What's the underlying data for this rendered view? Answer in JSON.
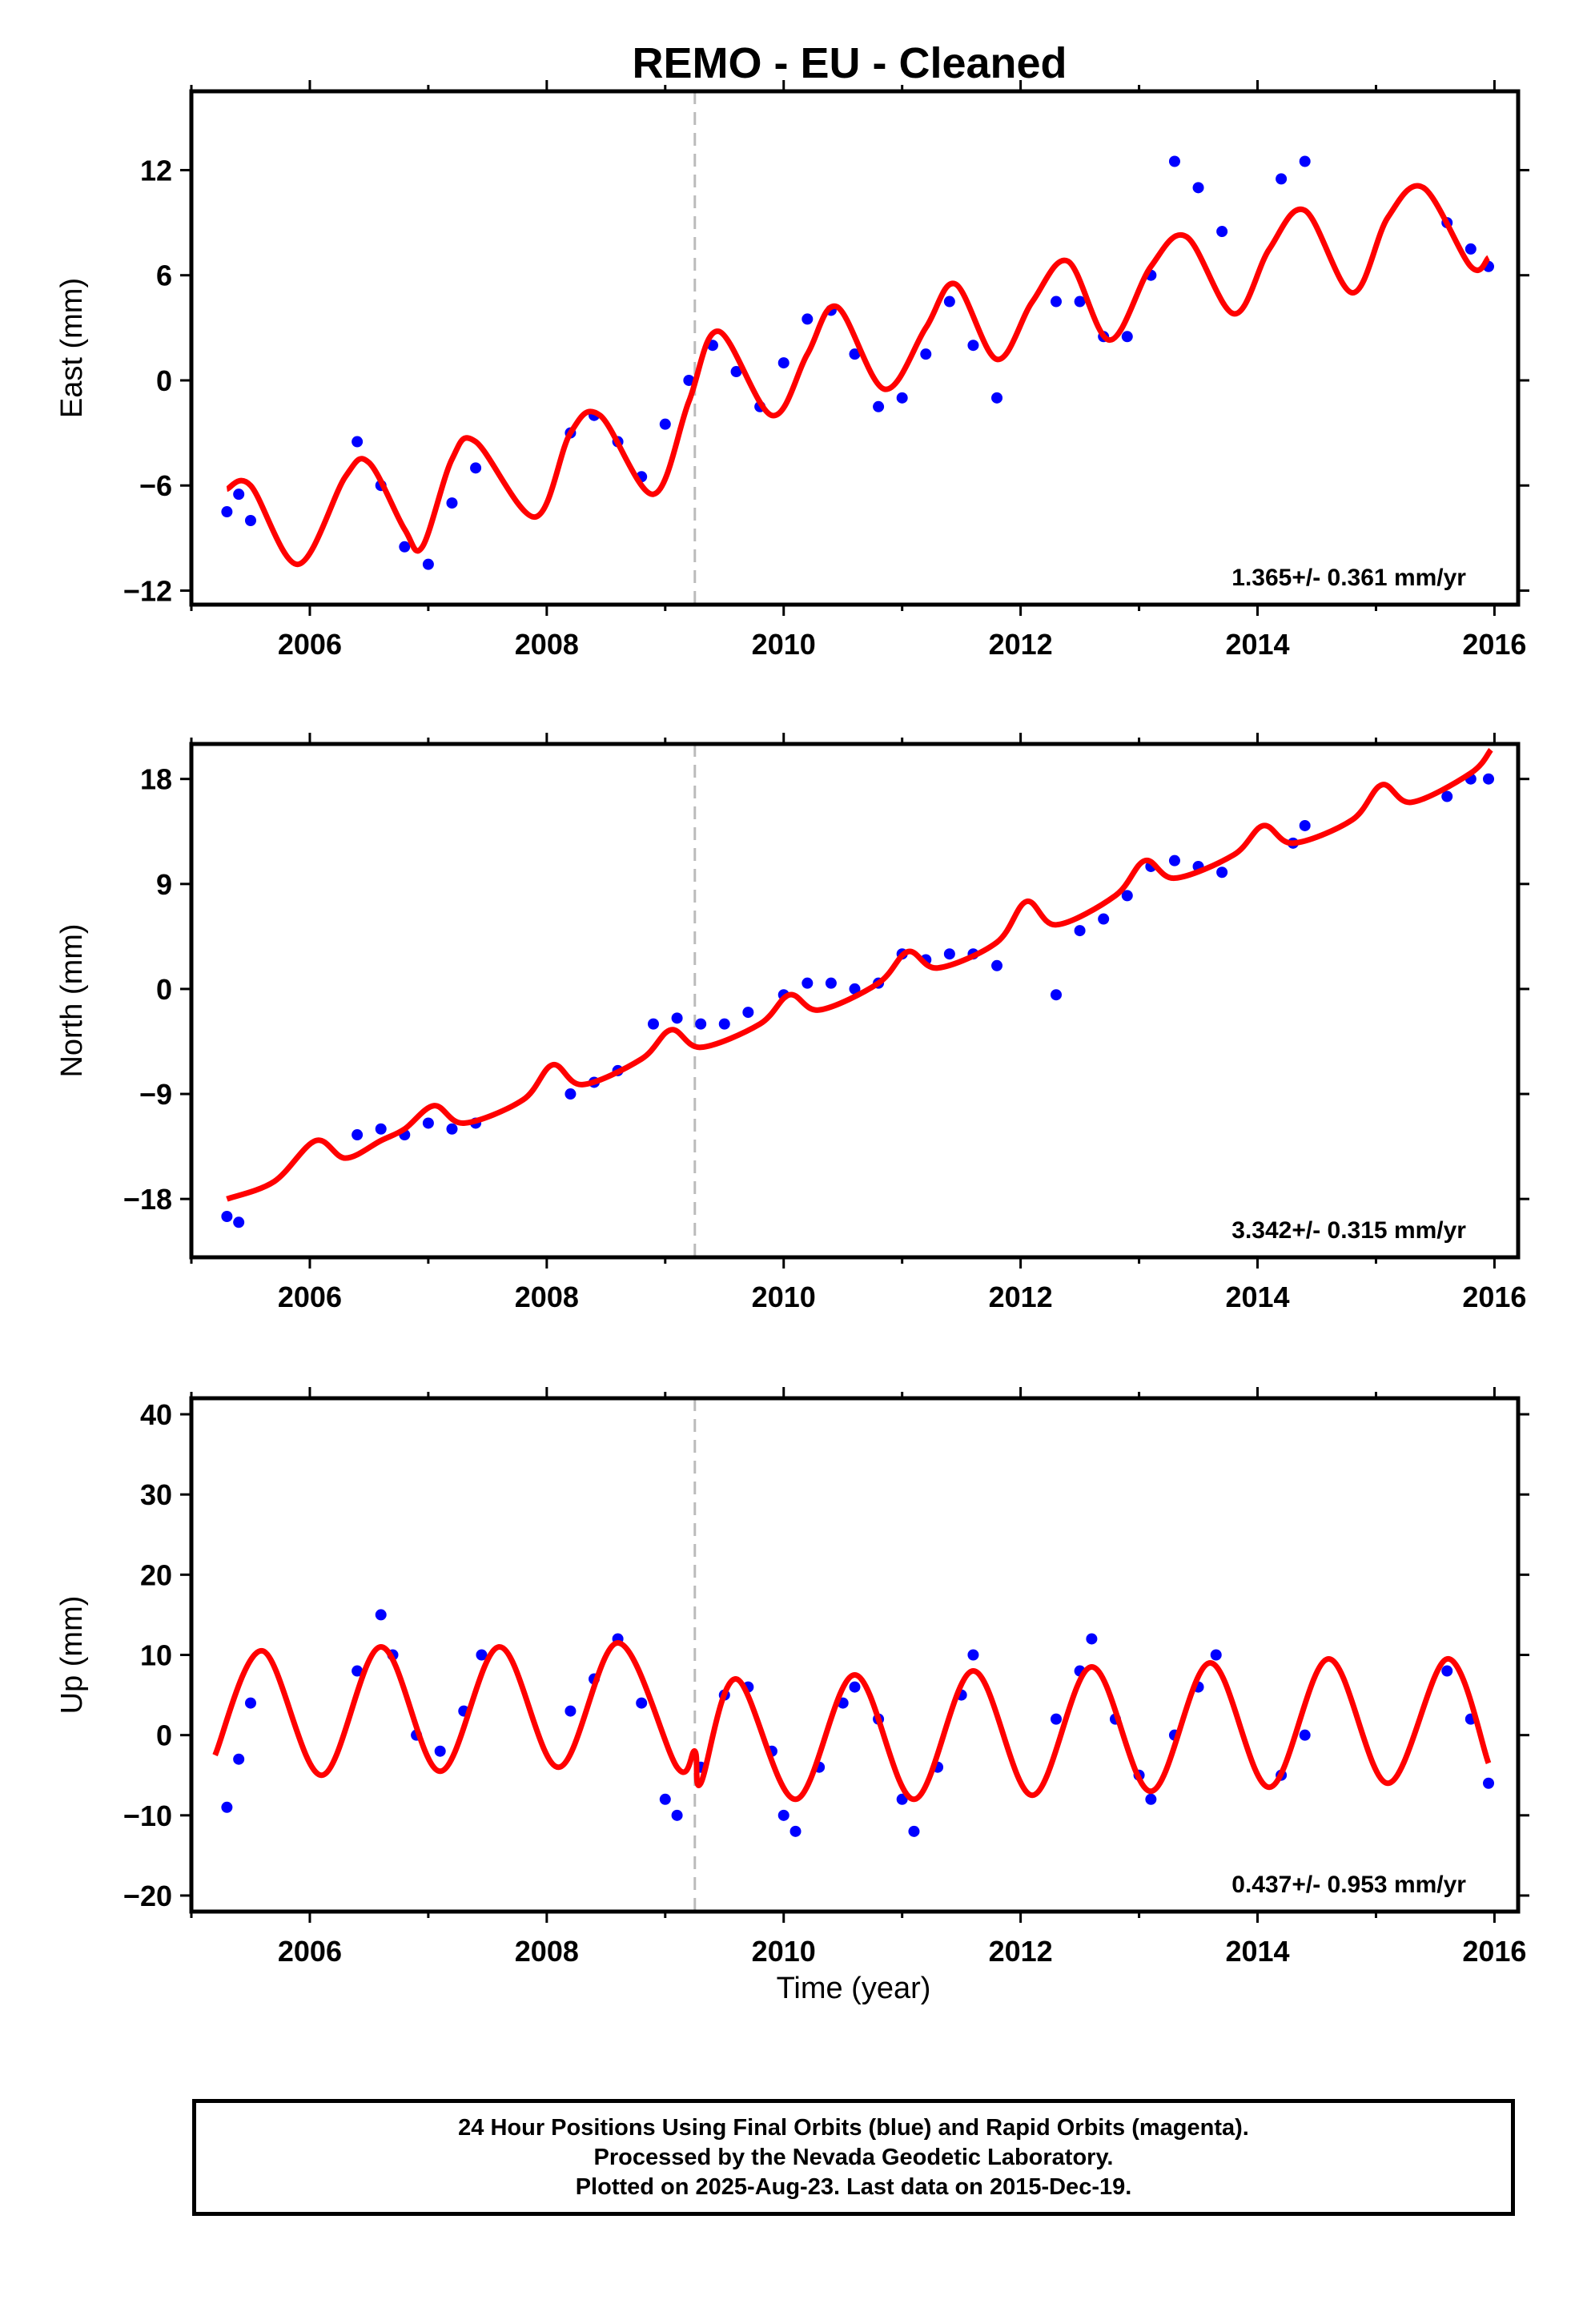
{
  "title": "REMO  - EU - Cleaned",
  "xlabel": "Time (year)",
  "footer": [
    "24 Hour Positions Using Final Orbits (blue) and Rapid Orbits (magenta).",
    "Processed by the Nevada Geodetic Laboratory.",
    "Plotted on 2025-Aug-23. Last data on 2015-Dec-19."
  ],
  "colors": {
    "data": "#0000ff",
    "model": "#ff0000",
    "event_line": "#bbbbbb"
  },
  "chart_data": [
    {
      "type": "scatter",
      "ylabel": "East (mm)",
      "rate_label": "1.365+/- 0.361 mm/yr",
      "xlim": [
        2005.0,
        2016.2
      ],
      "ylim": [
        -12.8,
        16.5
      ],
      "x_ticks": [
        2006,
        2008,
        2010,
        2012,
        2014,
        2016
      ],
      "y_ticks": [
        -12,
        -6,
        0,
        6,
        12
      ],
      "event_line_x": 2009.25,
      "grid": false,
      "series": [
        {
          "type": "scatter",
          "x": [
            2005.3,
            2005.4,
            2005.5,
            2006.4,
            2006.6,
            2006.8,
            2007.0,
            2007.2,
            2007.4,
            2008.2,
            2008.4,
            2008.6,
            2008.8,
            2009.0,
            2009.2,
            2009.4,
            2009.6,
            2009.8,
            2010.0,
            2010.2,
            2010.4,
            2010.6,
            2010.8,
            2011.0,
            2011.2,
            2011.4,
            2011.6,
            2011.8,
            2012.3,
            2012.5,
            2012.7,
            2012.9,
            2013.1,
            2013.3,
            2013.5,
            2013.7,
            2014.2,
            2014.4,
            2015.6,
            2015.8,
            2015.95
          ],
          "y": [
            -7.5,
            -6.5,
            -8,
            -3.5,
            -6,
            -9.5,
            -10.5,
            -7,
            -5,
            -3,
            -2,
            -3.5,
            -5.5,
            -2.5,
            0,
            2,
            0.5,
            -1.5,
            1,
            3.5,
            4,
            1.5,
            -1.5,
            -1,
            1.5,
            4.5,
            2,
            -1,
            4.5,
            4.5,
            2.5,
            2.5,
            6,
            12.5,
            11,
            8.5,
            11.5,
            12.5,
            9,
            7.5,
            6.5
          ]
        },
        {
          "type": "line",
          "x": [
            2005.3,
            2005.5,
            2005.9,
            2006.3,
            2006.5,
            2006.8,
            2006.95,
            2007.2,
            2007.4,
            2007.9,
            2008.2,
            2008.45,
            2008.9,
            2009.2,
            2009.45,
            2009.9,
            2010.2,
            2010.45,
            2010.85,
            2011.2,
            2011.45,
            2011.8,
            2012.1,
            2012.4,
            2012.75,
            2013.1,
            2013.4,
            2013.8,
            2014.1,
            2014.4,
            2014.8,
            2015.1,
            2015.4,
            2015.8,
            2015.95
          ],
          "y": [
            -6.2,
            -6,
            -10.5,
            -5.5,
            -4.7,
            -8.5,
            -9.5,
            -4.5,
            -3.5,
            -7.8,
            -3,
            -2,
            -6.5,
            -1.2,
            2.8,
            -2,
            1.5,
            4.2,
            -0.5,
            3,
            5.5,
            1.2,
            4.5,
            6.8,
            2.3,
            6.5,
            8.2,
            3.8,
            7.5,
            9.7,
            5,
            9.3,
            11,
            6.5,
            7
          ]
        }
      ]
    },
    {
      "type": "scatter",
      "ylabel": "North (mm)",
      "rate_label": "3.342+/- 0.315 mm/yr",
      "xlim": [
        2005.0,
        2016.2
      ],
      "ylim": [
        -23,
        21
      ],
      "x_ticks": [
        2006,
        2008,
        2010,
        2012,
        2014,
        2016
      ],
      "y_ticks": [
        -18,
        -9,
        0,
        9,
        18
      ],
      "event_line_x": 2009.25,
      "grid": false,
      "series": [
        {
          "type": "scatter",
          "x": [
            2005.3,
            2005.4,
            2006.4,
            2006.6,
            2006.8,
            2007.0,
            2007.2,
            2007.4,
            2008.2,
            2008.4,
            2008.6,
            2008.9,
            2009.1,
            2009.3,
            2009.5,
            2009.7,
            2010.0,
            2010.2,
            2010.4,
            2010.6,
            2010.8,
            2011.0,
            2011.2,
            2011.4,
            2011.6,
            2011.8,
            2012.3,
            2012.5,
            2012.7,
            2012.9,
            2013.1,
            2013.3,
            2013.5,
            2013.7,
            2014.3,
            2014.4,
            2015.6,
            2015.8,
            2015.95
          ],
          "y": [
            -19.5,
            -20,
            -12.5,
            -12,
            -12.5,
            -11.5,
            -12,
            -11.5,
            -9,
            -8,
            -7,
            -3,
            -2.5,
            -3,
            -3,
            -2,
            -0.5,
            0.5,
            0.5,
            0,
            0.5,
            3,
            2.5,
            3,
            3,
            2,
            -0.5,
            5,
            6,
            8,
            10.5,
            11,
            10.5,
            10,
            12.5,
            14,
            16.5,
            18,
            18
          ]
        },
        {
          "type": "line",
          "x": [
            2005.3,
            2005.7,
            2006.05,
            2006.3,
            2006.6,
            2006.8,
            2007.05,
            2007.3,
            2007.8,
            2008.05,
            2008.3,
            2008.8,
            2009.05,
            2009.3,
            2009.8,
            2010.05,
            2010.3,
            2010.8,
            2011.05,
            2011.3,
            2011.8,
            2012.05,
            2012.3,
            2012.8,
            2013.05,
            2013.3,
            2013.8,
            2014.05,
            2014.3,
            2014.8,
            2015.05,
            2015.3,
            2015.8,
            2015.97
          ],
          "y": [
            -18,
            -16.5,
            -13,
            -14.5,
            -13,
            -12,
            -10,
            -11.5,
            -9.5,
            -6.5,
            -8.2,
            -6,
            -3.5,
            -5,
            -3,
            -0.5,
            -1.8,
            0.5,
            3.2,
            1.8,
            4,
            7.5,
            5.5,
            8,
            11,
            9.5,
            11.5,
            14,
            12.5,
            14.5,
            17.5,
            16,
            18.5,
            20.5
          ]
        }
      ]
    },
    {
      "type": "scatter",
      "ylabel": "Up (mm)",
      "rate_label": "0.437+/- 0.953 mm/yr",
      "xlim": [
        2005.0,
        2016.2
      ],
      "ylim": [
        -22,
        42
      ],
      "x_ticks": [
        2006,
        2008,
        2010,
        2012,
        2014,
        2016
      ],
      "y_ticks": [
        -20,
        -10,
        0,
        10,
        20,
        30,
        40
      ],
      "event_line_x": 2009.25,
      "grid": false,
      "series": [
        {
          "type": "scatter",
          "x": [
            2005.3,
            2005.4,
            2005.5,
            2006.4,
            2006.6,
            2006.7,
            2006.9,
            2007.1,
            2007.3,
            2007.45,
            2008.2,
            2008.4,
            2008.6,
            2008.8,
            2009.0,
            2009.1,
            2009.3,
            2009.5,
            2009.7,
            2009.9,
            2010.0,
            2010.1,
            2010.3,
            2010.5,
            2010.6,
            2010.8,
            2011.0,
            2011.1,
            2011.3,
            2011.5,
            2011.6,
            2012.3,
            2012.5,
            2012.6,
            2012.8,
            2013.0,
            2013.1,
            2013.3,
            2013.5,
            2013.65,
            2014.2,
            2014.4,
            2015.6,
            2015.8,
            2015.95
          ],
          "y": [
            -9,
            -3,
            4,
            8,
            15,
            10,
            0,
            -2,
            3,
            10,
            3,
            7,
            12,
            4,
            -8,
            -10,
            -4,
            5,
            6,
            -2,
            -10,
            -12,
            -4,
            4,
            6,
            2,
            -8,
            -12,
            -4,
            5,
            10,
            2,
            8,
            12,
            2,
            -5,
            -8,
            0,
            6,
            10,
            -5,
            0,
            8,
            2,
            -6
          ]
        },
        {
          "type": "line",
          "x": [
            2005.2,
            2005.6,
            2006.1,
            2006.6,
            2007.1,
            2007.6,
            2008.1,
            2008.6,
            2009.1,
            2009.25,
            2009.3,
            2009.6,
            2010.1,
            2010.6,
            2011.1,
            2011.6,
            2012.1,
            2012.6,
            2013.1,
            2013.6,
            2014.1,
            2014.6,
            2015.1,
            2015.6,
            2015.95
          ],
          "y": [
            -2.5,
            10.5,
            -5,
            11,
            -4.5,
            11,
            -4,
            11.5,
            -4,
            -2,
            -6,
            7,
            -8,
            7.5,
            -8,
            8,
            -7.5,
            8.5,
            -7,
            9,
            -6.5,
            9.5,
            -6,
            9.5,
            -3.5
          ]
        }
      ]
    }
  ]
}
